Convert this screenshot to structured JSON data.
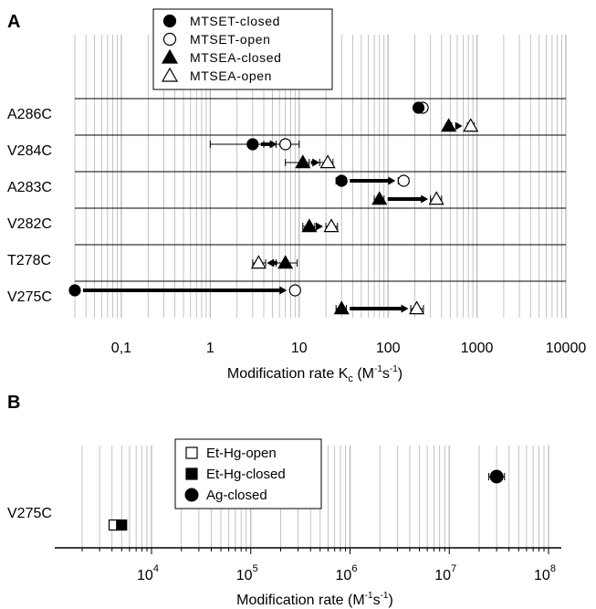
{
  "chart_data": [
    {
      "panel": "A",
      "type": "scatter",
      "x_scale": "log",
      "xlim": [
        0.03,
        10000
      ],
      "xlabel": "Modification rate K",
      "xlabel_sub": "c",
      "xlabel_unit_open": " (M",
      "xlabel_unit_exp1": "-1",
      "xlabel_unit_mid": "s",
      "xlabel_unit_exp2": "-1",
      "xlabel_unit_close": ")",
      "x_ticks": [
        {
          "value": 0.1,
          "label": "0,1"
        },
        {
          "value": 1,
          "label": "1"
        },
        {
          "value": 10,
          "label": "10"
        },
        {
          "value": 100,
          "label": "100"
        },
        {
          "value": 1000,
          "label": "1000"
        },
        {
          "value": 10000,
          "label": "10000"
        }
      ],
      "grid": true,
      "legend_position": "top",
      "legend": [
        {
          "label": "MTSET-closed",
          "marker": "circle",
          "fill": "filled"
        },
        {
          "label": "MTSET-open",
          "marker": "circle",
          "fill": "open"
        },
        {
          "label": "MTSEA-closed",
          "marker": "triangle",
          "fill": "filled"
        },
        {
          "label": "MTSEA-open",
          "marker": "triangle",
          "fill": "open"
        }
      ],
      "rows": [
        {
          "label": "A286C",
          "pairs": [
            {
              "reagent": "MTSET",
              "closed": 220,
              "open": 245,
              "closed_err": [
                200,
                245
              ],
              "open_err": [
                215,
                275
              ]
            },
            {
              "reagent": "MTSEA",
              "closed": 480,
              "open": 850,
              "closed_err": [
                450,
                520
              ],
              "open_err": [
                780,
                930
              ]
            }
          ]
        },
        {
          "label": "V284C",
          "pairs": [
            {
              "reagent": "MTSET",
              "closed": 3.0,
              "open": 7.0,
              "closed_err": [
                1.0,
                4.0
              ],
              "open_err": [
                5.5,
                10
              ]
            },
            {
              "reagent": "MTSEA",
              "closed": 11,
              "open": 21,
              "closed_err": [
                7,
                13
              ],
              "open_err": [
                17,
                24
              ]
            }
          ]
        },
        {
          "label": "A283C",
          "pairs": [
            {
              "reagent": "MTSET",
              "closed": 30,
              "open": 150,
              "closed_err": [
                26,
                34
              ],
              "open_err": [
                130,
                170
              ]
            },
            {
              "reagent": "MTSEA",
              "closed": 80,
              "open": 350,
              "closed_err": [
                70,
                90
              ],
              "open_err": [
                300,
                400
              ]
            }
          ]
        },
        {
          "label": "V282C",
          "pairs": [
            {
              "reagent": "MTSEA",
              "closed": 13,
              "open": 23,
              "closed_err": [
                11,
                15
              ],
              "open_err": [
                20,
                27
              ]
            }
          ]
        },
        {
          "label": "T278C",
          "pairs": [
            {
              "reagent": "MTSEA",
              "closed": 7.0,
              "open": 3.5,
              "closed_err": [
                5.5,
                9.5
              ],
              "open_err": [
                3.0,
                4.2
              ]
            }
          ]
        },
        {
          "label": "V275C",
          "pairs": [
            {
              "reagent": "MTSET",
              "closed": 0.03,
              "open": 9.0,
              "closed_err": [
                0.03,
                0.03
              ],
              "open_err": [
                8,
                10.2
              ]
            },
            {
              "reagent": "MTSEA",
              "closed": 30,
              "open": 210,
              "closed_err": [
                26,
                34
              ],
              "open_err": [
                180,
                250
              ]
            }
          ]
        }
      ]
    },
    {
      "panel": "B",
      "type": "scatter",
      "x_scale": "log",
      "xlim": [
        2000,
        100000000
      ],
      "xlabel": "Modification rate",
      "xlabel_unit_open": " (M",
      "xlabel_unit_exp1": "-1",
      "xlabel_unit_mid": "s",
      "xlabel_unit_exp2": "-1",
      "xlabel_unit_close": ")",
      "x_ticks": [
        {
          "value": 10000,
          "base": "10",
          "exp": "4"
        },
        {
          "value": 100000,
          "base": "10",
          "exp": "5"
        },
        {
          "value": 1000000,
          "base": "10",
          "exp": "6"
        },
        {
          "value": 10000000,
          "base": "10",
          "exp": "7"
        },
        {
          "value": 100000000,
          "base": "10",
          "exp": "8"
        }
      ],
      "grid": true,
      "legend_position": "top-center",
      "legend": [
        {
          "label": "Et-Hg-open",
          "marker": "square",
          "fill": "open"
        },
        {
          "label": "Et-Hg-closed",
          "marker": "square",
          "fill": "filled"
        },
        {
          "label": "Ag-closed",
          "marker": "circle",
          "fill": "filled"
        }
      ],
      "rows": [
        {
          "label": "V275C",
          "points": [
            {
              "series": "Et-Hg-open",
              "x": 4200,
              "y_level": "low"
            },
            {
              "series": "Et-Hg-closed",
              "x": 5000,
              "y_level": "low"
            },
            {
              "series": "Ag-closed",
              "x": 30000000,
              "y_level": "high",
              "err": [
                25000000,
                36000000
              ]
            }
          ]
        }
      ]
    }
  ]
}
